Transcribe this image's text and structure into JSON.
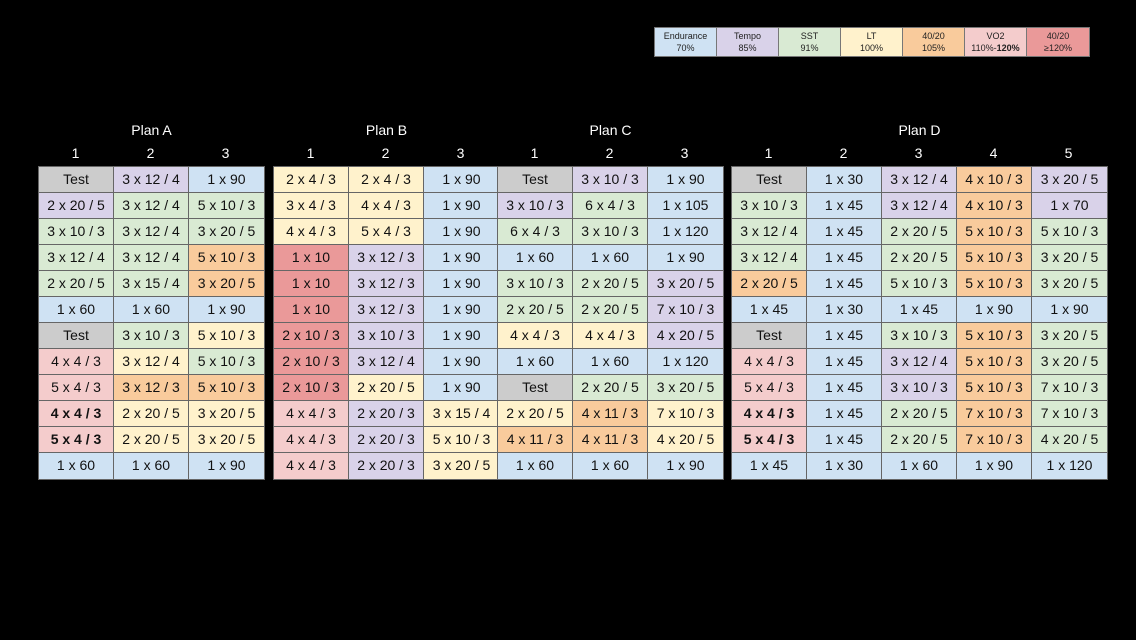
{
  "legend": [
    {
      "name": "Endurance",
      "pct": "70%",
      "pct_bold": "",
      "color": "#cfe2f3"
    },
    {
      "name": "Tempo",
      "pct": "85%",
      "pct_bold": "",
      "color": "#d9d2e9"
    },
    {
      "name": "SST",
      "pct": "91%",
      "pct_bold": "",
      "color": "#d9ead3"
    },
    {
      "name": "LT",
      "pct": "100%",
      "pct_bold": "",
      "color": "#fff2cc"
    },
    {
      "name": "40/20",
      "pct": "105%",
      "pct_bold": "",
      "color": "#f9cb9c"
    },
    {
      "name": "VO2",
      "pct": "110%-",
      "pct_bold": "120%",
      "color": "#f4cccc"
    },
    {
      "name": "40/20",
      "pct": "≥120%",
      "pct_bold": "",
      "color": "#ea9999"
    }
  ],
  "plans": [
    {
      "title": "Plan A",
      "columns": [
        "1",
        "2",
        "3"
      ],
      "rows": [
        [
          [
            "Test",
            "g"
          ],
          [
            "3 x 12 / 4",
            "t"
          ],
          [
            "1 x 90",
            "e"
          ]
        ],
        [
          [
            "2 x 20 / 5",
            "t"
          ],
          [
            "3 x 12 / 4",
            "s"
          ],
          [
            "5 x 10 / 3",
            "s"
          ]
        ],
        [
          [
            "3 x 10 / 3",
            "s"
          ],
          [
            "3 x 12 / 4",
            "s"
          ],
          [
            "3 x 20 / 5",
            "s"
          ]
        ],
        [
          [
            "3 x 12 / 4",
            "s"
          ],
          [
            "3 x 12 / 4",
            "s"
          ],
          [
            "5 x 10 / 3",
            "f"
          ]
        ],
        [
          [
            "2 x 20 / 5",
            "s"
          ],
          [
            "3 x 15 / 4",
            "s"
          ],
          [
            "3 x 20 / 5",
            "f"
          ]
        ],
        [
          [
            "1 x 60",
            "e"
          ],
          [
            "1 x 60",
            "e"
          ],
          [
            "1 x 90",
            "e"
          ]
        ],
        [
          [
            "Test",
            "g"
          ],
          [
            "3 x 10 / 3",
            "s"
          ],
          [
            "5 x 10 / 3",
            "l"
          ]
        ],
        [
          [
            "4 x 4 / 3",
            "v"
          ],
          [
            "3 x 12 / 4",
            "l"
          ],
          [
            "5 x 10 / 3",
            "s"
          ]
        ],
        [
          [
            "5 x 4 / 3",
            "v"
          ],
          [
            "3 x 12 / 3",
            "f"
          ],
          [
            "5 x 10 / 3",
            "f"
          ]
        ],
        [
          [
            "4 x 4 / 3",
            "v",
            "b"
          ],
          [
            "2 x 20 / 5",
            "l"
          ],
          [
            "3 x 20 / 5",
            "l"
          ]
        ],
        [
          [
            "5 x 4 / 3",
            "v",
            "b"
          ],
          [
            "2 x 20 / 5",
            "l"
          ],
          [
            "3 x 20 / 5",
            "l"
          ]
        ],
        [
          [
            "1 x 60",
            "e"
          ],
          [
            "1 x 60",
            "e"
          ],
          [
            "1 x 90",
            "e"
          ]
        ]
      ]
    },
    {
      "title": "Plan B",
      "columns": [
        "1",
        "2",
        "3"
      ],
      "rows": [
        [
          [
            "2 x 4 / 3",
            "l"
          ],
          [
            "2 x 4 / 3",
            "l"
          ],
          [
            "1 x 90",
            "e"
          ]
        ],
        [
          [
            "3 x 4 / 3",
            "l"
          ],
          [
            "4 x 4 / 3",
            "l"
          ],
          [
            "1 x 90",
            "e"
          ]
        ],
        [
          [
            "4 x 4 / 3",
            "l"
          ],
          [
            "5 x 4 / 3",
            "l"
          ],
          [
            "1 x 90",
            "e"
          ]
        ],
        [
          [
            "1 x 10",
            "r"
          ],
          [
            "3 x 12 / 3",
            "t"
          ],
          [
            "1 x 90",
            "e"
          ]
        ],
        [
          [
            "1 x 10",
            "r"
          ],
          [
            "3 x 12 / 3",
            "t"
          ],
          [
            "1 x 90",
            "e"
          ]
        ],
        [
          [
            "1 x 10",
            "r"
          ],
          [
            "3 x 12 / 3",
            "t"
          ],
          [
            "1 x 90",
            "e"
          ]
        ],
        [
          [
            "2 x 10 / 3",
            "r"
          ],
          [
            "3 x 10 / 3",
            "t"
          ],
          [
            "1 x 90",
            "e"
          ]
        ],
        [
          [
            "2 x 10 / 3",
            "r"
          ],
          [
            "3 x 12 / 4",
            "t"
          ],
          [
            "1 x 90",
            "e"
          ]
        ],
        [
          [
            "2 x 10 / 3",
            "r"
          ],
          [
            "2 x 20 / 5",
            "l"
          ],
          [
            "1 x 90",
            "e"
          ]
        ],
        [
          [
            "4 x 4 / 3",
            "v"
          ],
          [
            "2 x 20 / 3",
            "t"
          ],
          [
            "3 x 15 / 4",
            "l"
          ]
        ],
        [
          [
            "4 x 4 / 3",
            "v"
          ],
          [
            "2 x 20 / 3",
            "t"
          ],
          [
            "5 x 10 / 3",
            "l"
          ]
        ],
        [
          [
            "4 x 4 / 3",
            "v"
          ],
          [
            "2 x 20 / 3",
            "t"
          ],
          [
            "3 x 20 / 5",
            "l"
          ]
        ]
      ]
    },
    {
      "title": "Plan C",
      "columns": [
        "1",
        "2",
        "3"
      ],
      "rows": [
        [
          [
            "Test",
            "g"
          ],
          [
            "3 x 10 / 3",
            "t"
          ],
          [
            "1 x 90",
            "e"
          ]
        ],
        [
          [
            "3 x 10 / 3",
            "t"
          ],
          [
            "6 x 4 / 3",
            "s"
          ],
          [
            "1 x 105",
            "e"
          ]
        ],
        [
          [
            "6 x 4 / 3",
            "s"
          ],
          [
            "3 x 10 / 3",
            "s"
          ],
          [
            "1 x 120",
            "e"
          ]
        ],
        [
          [
            "1 x 60",
            "e"
          ],
          [
            "1 x 60",
            "e"
          ],
          [
            "1 x 90",
            "e"
          ]
        ],
        [
          [
            "3 x 10 / 3",
            "s"
          ],
          [
            "2 x 20 / 5",
            "s"
          ],
          [
            "3 x 20 / 5",
            "t"
          ]
        ],
        [
          [
            "2 x 20 / 5",
            "s"
          ],
          [
            "2 x 20 / 5",
            "s"
          ],
          [
            "7 x 10 / 3",
            "t"
          ]
        ],
        [
          [
            "4 x 4 / 3",
            "l"
          ],
          [
            "4 x 4 / 3",
            "l"
          ],
          [
            "4 x 20 / 5",
            "t"
          ]
        ],
        [
          [
            "1 x 60",
            "e"
          ],
          [
            "1 x 60",
            "e"
          ],
          [
            "1 x 120",
            "e"
          ]
        ],
        [
          [
            "Test",
            "g"
          ],
          [
            "2 x 20 / 5",
            "s"
          ],
          [
            "3 x 20 / 5",
            "s"
          ]
        ],
        [
          [
            "2 x 20 / 5",
            "l"
          ],
          [
            "4 x 11 / 3",
            "f"
          ],
          [
            "7 x 10 / 3",
            "l"
          ]
        ],
        [
          [
            "4 x 11 / 3",
            "f"
          ],
          [
            "4 x 11 / 3",
            "f"
          ],
          [
            "4 x 20 / 5",
            "l"
          ]
        ],
        [
          [
            "1 x 60",
            "e"
          ],
          [
            "1 x 60",
            "e"
          ],
          [
            "1 x 90",
            "e"
          ]
        ]
      ]
    },
    {
      "title": "Plan D",
      "columns": [
        "1",
        "2",
        "3",
        "4",
        "5"
      ],
      "rows": [
        [
          [
            "Test",
            "g"
          ],
          [
            "1 x 30",
            "e"
          ],
          [
            "3 x 12 / 4",
            "t"
          ],
          [
            "4 x 10 / 3",
            "f"
          ],
          [
            "3 x 20 / 5",
            "t"
          ]
        ],
        [
          [
            "3 x 10 / 3",
            "s"
          ],
          [
            "1 x 45",
            "e"
          ],
          [
            "3 x 12 / 4",
            "t"
          ],
          [
            "4 x 10 / 3",
            "f"
          ],
          [
            "1 x 70",
            "t"
          ]
        ],
        [
          [
            "3 x 12 / 4",
            "s"
          ],
          [
            "1 x 45",
            "e"
          ],
          [
            "2 x 20 / 5",
            "s"
          ],
          [
            "5 x 10 / 3",
            "f"
          ],
          [
            "5 x 10 / 3",
            "s"
          ]
        ],
        [
          [
            "3 x 12 / 4",
            "s"
          ],
          [
            "1 x 45",
            "e"
          ],
          [
            "2 x 20 / 5",
            "s"
          ],
          [
            "5 x 10 / 3",
            "f"
          ],
          [
            "3 x 20 / 5",
            "s"
          ]
        ],
        [
          [
            "2 x 20 / 5",
            "f"
          ],
          [
            "1 x 45",
            "e"
          ],
          [
            "5 x 10 / 3",
            "s"
          ],
          [
            "5 x 10 / 3",
            "f"
          ],
          [
            "3 x 20 / 5",
            "s"
          ]
        ],
        [
          [
            "1 x 45",
            "e"
          ],
          [
            "1 x 30",
            "e"
          ],
          [
            "1 x 45",
            "e"
          ],
          [
            "1 x 90",
            "e"
          ],
          [
            "1 x 90",
            "e"
          ]
        ],
        [
          [
            "Test",
            "g"
          ],
          [
            "1 x 45",
            "e"
          ],
          [
            "3 x 10 / 3",
            "s"
          ],
          [
            "5 x 10 / 3",
            "f"
          ],
          [
            "3 x 20 / 5",
            "s"
          ]
        ],
        [
          [
            "4 x 4 / 3",
            "v"
          ],
          [
            "1 x 45",
            "e"
          ],
          [
            "3 x 12 / 4",
            "t"
          ],
          [
            "5 x 10 / 3",
            "f"
          ],
          [
            "3 x 20 / 5",
            "s"
          ]
        ],
        [
          [
            "5 x 4 / 3",
            "v"
          ],
          [
            "1 x 45",
            "e"
          ],
          [
            "3 x 10 / 3",
            "t"
          ],
          [
            "5 x 10 / 3",
            "f"
          ],
          [
            "7 x 10 / 3",
            "s"
          ]
        ],
        [
          [
            "4 x 4 / 3",
            "v",
            "b"
          ],
          [
            "1 x 45",
            "e"
          ],
          [
            "2 x 20 / 5",
            "s"
          ],
          [
            "7 x 10 / 3",
            "f"
          ],
          [
            "7 x 10 / 3",
            "s"
          ]
        ],
        [
          [
            "5 x 4 / 3",
            "v",
            "b"
          ],
          [
            "1 x 45",
            "e"
          ],
          [
            "2 x 20 / 5",
            "s"
          ],
          [
            "7 x 10 / 3",
            "f"
          ],
          [
            "4 x 20 / 5",
            "s"
          ]
        ],
        [
          [
            "1 x 45",
            "e"
          ],
          [
            "1 x 30",
            "e"
          ],
          [
            "1 x 60",
            "e"
          ],
          [
            "1 x 90",
            "e"
          ],
          [
            "1 x 120",
            "e"
          ]
        ]
      ]
    }
  ]
}
